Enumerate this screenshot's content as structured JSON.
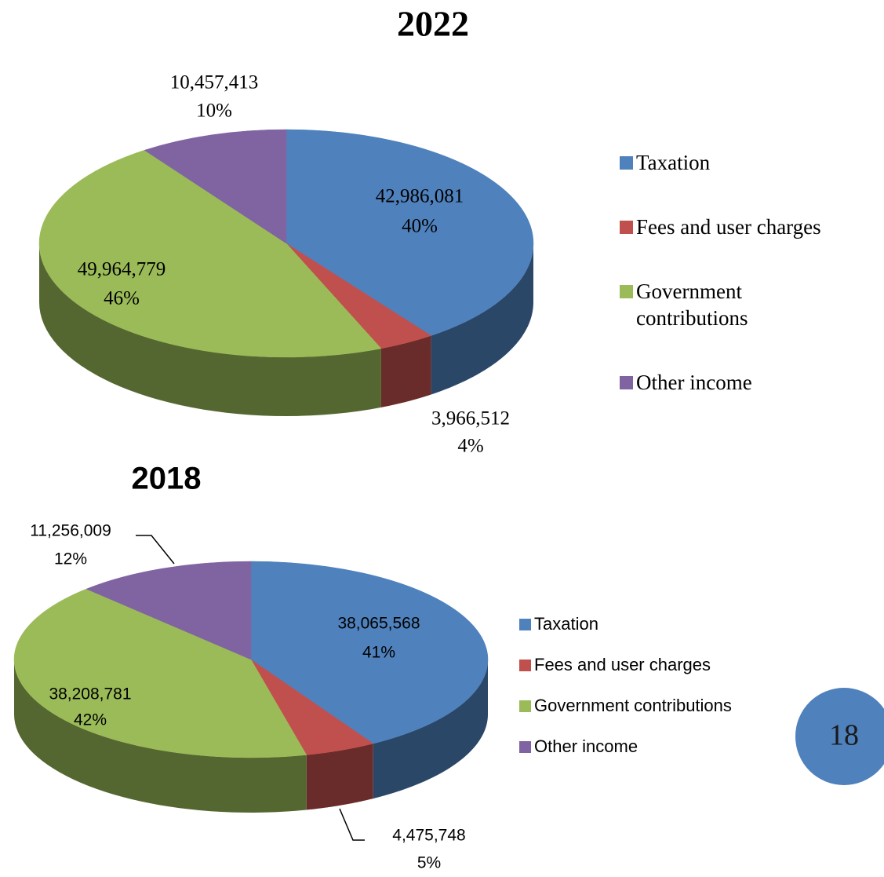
{
  "chart_data": [
    {
      "type": "pie",
      "title": "2022",
      "categories": [
        "Taxation",
        "Fees and user charges",
        "Government contributions",
        "Other income"
      ],
      "values": [
        42986081,
        3966512,
        49964779,
        10457413
      ],
      "value_labels": [
        "42,986,081",
        "3,966,512",
        "49,964,779",
        "10,457,413"
      ],
      "percents": [
        40,
        4,
        46,
        10
      ],
      "percent_labels": [
        "40%",
        "4%",
        "46%",
        "10%"
      ],
      "colors": [
        "#4f81bd",
        "#c0504d",
        "#9bbb59",
        "#8064a2"
      ],
      "legend": "right"
    },
    {
      "type": "pie",
      "title": "2018",
      "categories": [
        "Taxation",
        "Fees and user charges",
        "Government contributions",
        "Other income"
      ],
      "values": [
        38065568,
        4475748,
        38208781,
        11256009
      ],
      "value_labels": [
        "38,065,568",
        "4,475,748",
        "38,208,781",
        "11,256,009"
      ],
      "percents": [
        41,
        5,
        42,
        12
      ],
      "percent_labels": [
        "41%",
        "5%",
        "42%",
        "12%"
      ],
      "colors": [
        "#4f81bd",
        "#c0504d",
        "#9bbb59",
        "#8064a2"
      ],
      "legend": "right"
    }
  ],
  "page_number": "18"
}
